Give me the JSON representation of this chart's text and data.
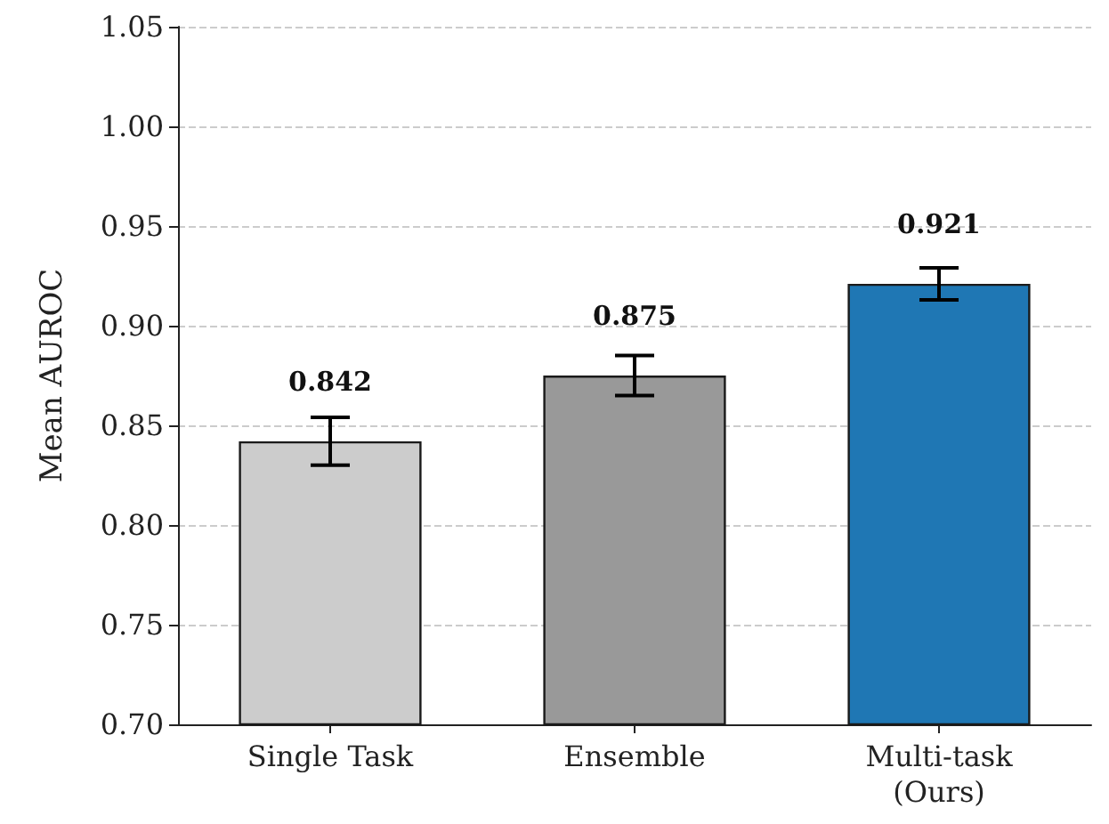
{
  "chart_data": {
    "type": "bar",
    "ylabel": "Mean AUROC",
    "categories": [
      "Single Task",
      "Ensemble",
      "Multi-task\n(Ours)"
    ],
    "values": [
      0.842,
      0.875,
      0.921
    ],
    "colors": [
      "#cccccc",
      "#999999",
      "#1f77b4"
    ],
    "errors": [
      0.012,
      0.01,
      0.008
    ],
    "data_labels": true,
    "ylim": [
      0.7,
      1.05
    ],
    "yticks": [
      {
        "value": 0.7,
        "label": "0.70"
      },
      0.75,
      {
        "value": 0.8,
        "label": "0.80"
      },
      0.85,
      {
        "value": 0.9,
        "label": "0.90"
      },
      0.95,
      {
        "value": 1,
        "label": "1.00"
      },
      1.05
    ],
    "grid": "y"
  }
}
